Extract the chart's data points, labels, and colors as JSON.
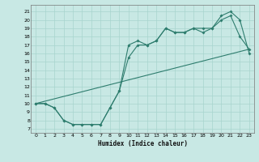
{
  "xlabel": "Humidex (Indice chaleur)",
  "bg_color": "#c8e8e4",
  "line_color": "#2e7d6e",
  "grid_color": "#a8d4ce",
  "xlim": [
    -0.5,
    23.5
  ],
  "ylim": [
    6.5,
    21.8
  ],
  "xticks": [
    0,
    1,
    2,
    3,
    4,
    5,
    6,
    7,
    8,
    9,
    10,
    11,
    12,
    13,
    14,
    15,
    16,
    17,
    18,
    19,
    20,
    21,
    22,
    23
  ],
  "yticks": [
    7,
    8,
    9,
    10,
    11,
    12,
    13,
    14,
    15,
    16,
    17,
    18,
    19,
    20,
    21
  ],
  "line1_x": [
    0,
    1,
    2,
    3,
    4,
    5,
    6,
    7,
    8,
    9,
    10,
    11,
    12,
    13,
    14,
    15,
    16,
    17,
    18,
    19,
    20,
    21,
    22,
    23
  ],
  "line1_y": [
    10,
    10,
    9.5,
    8.0,
    7.5,
    7.5,
    7.5,
    7.5,
    9.5,
    11.5,
    17,
    17.5,
    17,
    17.5,
    19,
    18.5,
    18.5,
    19,
    19,
    19,
    20.5,
    21,
    20,
    16
  ],
  "line2_x": [
    0,
    1,
    2,
    3,
    4,
    5,
    6,
    7,
    8,
    9,
    10,
    11,
    12,
    13,
    14,
    15,
    16,
    17,
    18,
    19,
    20,
    21,
    22,
    23
  ],
  "line2_y": [
    10,
    10,
    9.5,
    8.0,
    7.5,
    7.5,
    7.5,
    7.5,
    9.5,
    11.5,
    15.5,
    17,
    17,
    17.5,
    19,
    18.5,
    18.5,
    19,
    18.5,
    19,
    20,
    20.5,
    18,
    16.5
  ],
  "line3_x": [
    0,
    23
  ],
  "line3_y": [
    10,
    16.5
  ]
}
